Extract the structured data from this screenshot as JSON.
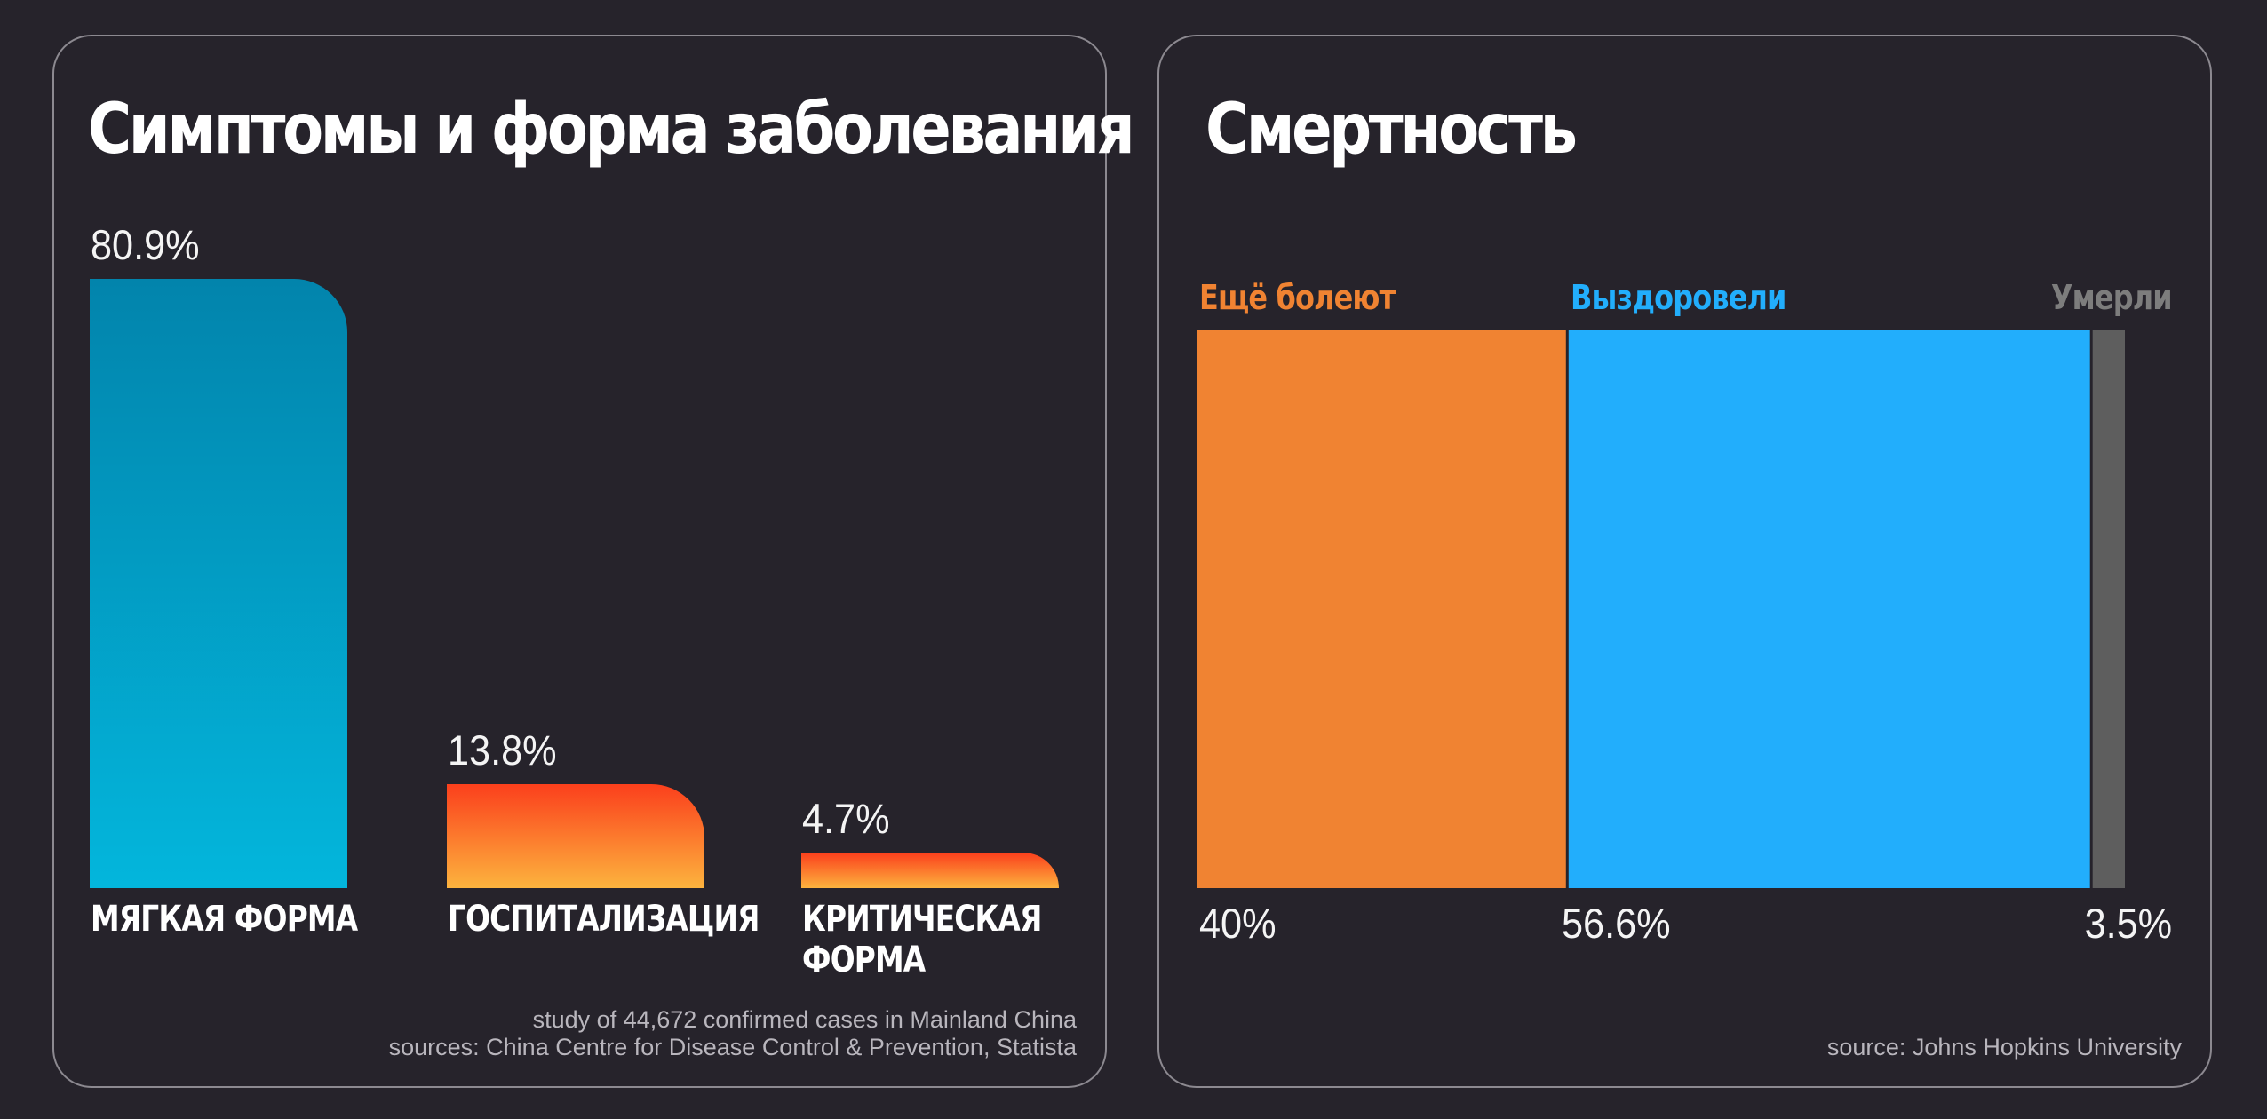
{
  "panels": {
    "left": {
      "title": "Симптомы и форма заболевания",
      "source_lines": [
        "study of 44,672 confirmed cases in Mainland China",
        "sources: China Centre for Disease Control & Prevention, Statista"
      ]
    },
    "right": {
      "title": "Смертность",
      "source_lines": [
        "source: Johns Hopkins University"
      ]
    }
  },
  "colors": {
    "background": "#26232b",
    "panel_border": "#8c8990",
    "mild_top": "#0284ac",
    "mild_bottom": "#03b6dc",
    "severe_top": "#fb3f1c",
    "severe_bottom": "#fcb33e",
    "still_ill": "#f08332",
    "recovered": "#22aefc",
    "died": "#5e5e5e"
  },
  "chart_data": [
    {
      "type": "bar",
      "title": "Симптомы и форма заболевания",
      "categories": [
        "Мягкая форма",
        "Госпитализация",
        "Критическая\nформа"
      ],
      "values": [
        80.9,
        13.8,
        4.7
      ],
      "value_labels": [
        "80.9%",
        "13.8%",
        "4.7%"
      ],
      "ylim": [
        0,
        80.9
      ],
      "grid": false,
      "legend": "none"
    },
    {
      "type": "bar",
      "subtype": "stacked-100-percent",
      "title": "Смертность",
      "series": [
        {
          "name": "Ещё болеют",
          "value": 40,
          "value_label": "40%"
        },
        {
          "name": "Выздоровели",
          "value": 56.6,
          "value_label": "56.6%"
        },
        {
          "name": "Умерли",
          "value": 3.5,
          "value_label": "3.5%"
        }
      ],
      "grid": false,
      "legend": "labels above segments"
    }
  ]
}
